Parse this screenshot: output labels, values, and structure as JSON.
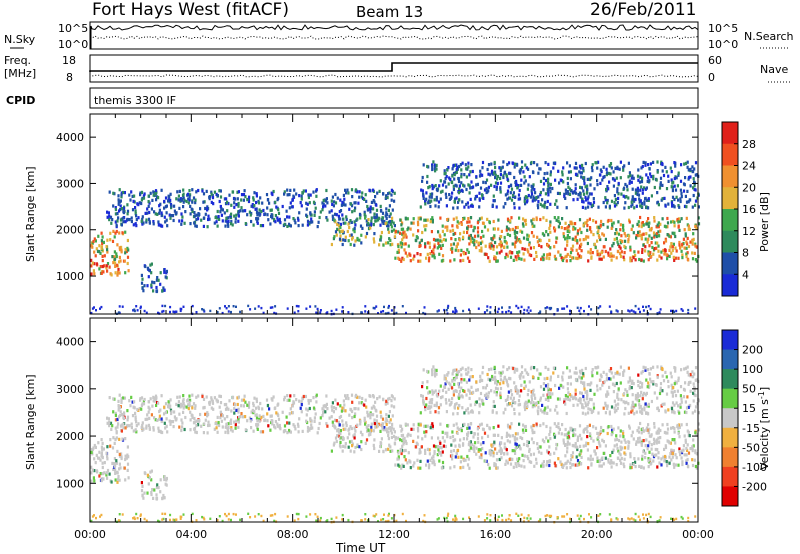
{
  "header": {
    "station": "Fort Hays West (fitACF)",
    "beam": "Beam 13",
    "date": "26/Feb/2011"
  },
  "summary_panels": {
    "nsky_label": "N.Sky",
    "nsky_ticks": [
      "10^5",
      "10^0"
    ],
    "nsearch_label": "N.Search",
    "nsearch_ticks": [
      "10^5",
      "10^0"
    ],
    "freq_label_1": "Freq.",
    "freq_label_2": "[MHz]",
    "freq_ticks": [
      "18",
      "8"
    ],
    "nave_label": "Nave",
    "nave_ticks": [
      "60",
      "0"
    ],
    "cpid_label": "CPID",
    "cpid_text": "themis 3300 IF"
  },
  "colors": {
    "power": [
      "#1a2bd6",
      "#1f4fa8",
      "#2e8a5c",
      "#3fa84e",
      "#e2b23a",
      "#f09030",
      "#f05020",
      "#e0201a"
    ],
    "velocity": [
      "#1a2bd6",
      "#2a66b0",
      "#2e8a5c",
      "#66cc44",
      "#c8c8c8",
      "#f0b040",
      "#f08030",
      "#f04020",
      "#e00000"
    ]
  },
  "chart_data": [
    {
      "type": "heatmap",
      "quantity": "Power",
      "ylabel": "Slant Range [km]",
      "xlabel": "",
      "xlim": [
        0,
        24
      ],
      "ylim": [
        180,
        4500
      ],
      "y_ticks": [
        "1000",
        "2000",
        "3000",
        "4000"
      ],
      "x_ticks": [
        "00:00",
        "04:00",
        "08:00",
        "12:00",
        "16:00",
        "20:00",
        "00:00"
      ],
      "colorbar_label": "Power [dB]",
      "colorbar_ticks": [
        "4",
        "8",
        "12",
        "16",
        "20",
        "24",
        "28"
      ],
      "colorbar_range": [
        0,
        32
      ],
      "echo_regions": [
        {
          "t": [
            0.0,
            1.5
          ],
          "r": [
            1050,
            2000
          ],
          "level": "high"
        },
        {
          "t": [
            0.6,
            12.0
          ],
          "r": [
            2100,
            2900
          ],
          "level": "low"
        },
        {
          "t": [
            2.0,
            3.0
          ],
          "r": [
            700,
            1300
          ],
          "level": "low"
        },
        {
          "t": [
            9.5,
            12.0
          ],
          "r": [
            1700,
            2300
          ],
          "level": "medium"
        },
        {
          "t": [
            12.0,
            24.0
          ],
          "r": [
            1350,
            2300
          ],
          "level": "high"
        },
        {
          "t": [
            13.0,
            24.0
          ],
          "r": [
            2500,
            3500
          ],
          "level": "low"
        }
      ]
    },
    {
      "type": "heatmap",
      "quantity": "Velocity",
      "ylabel": "Slant Range [km]",
      "xlabel": "Time UT",
      "xlim": [
        0,
        24
      ],
      "ylim": [
        180,
        4500
      ],
      "y_ticks": [
        "1000",
        "2000",
        "3000",
        "4000"
      ],
      "x_ticks": [
        "00:00",
        "04:00",
        "08:00",
        "12:00",
        "16:00",
        "20:00",
        "00:00"
      ],
      "colorbar_label": "Velocity [m s^-1]",
      "colorbar_ticks": [
        "200",
        "100",
        "50",
        "15",
        "-15",
        "-50",
        "-100",
        "-200"
      ],
      "dominant_velocity_range": [
        -15,
        15
      ]
    }
  ]
}
